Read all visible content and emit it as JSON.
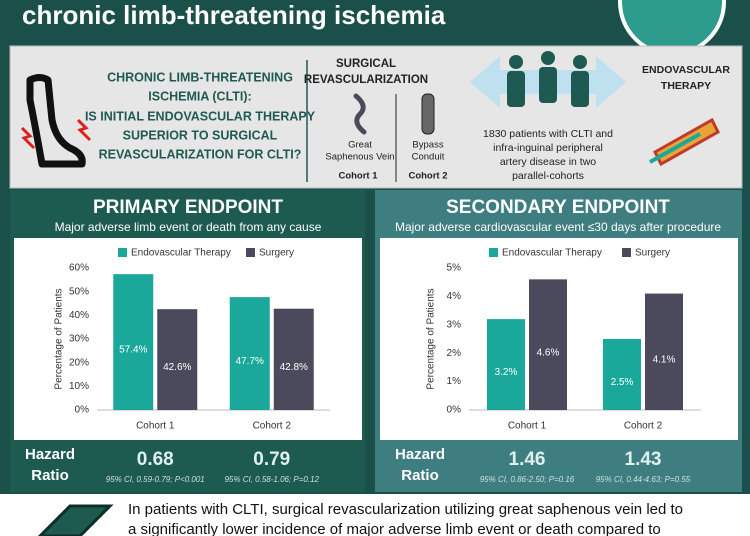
{
  "header": {
    "title": "chronic limb-threatening ischemia"
  },
  "intro": {
    "condition": [
      "CHRONIC LIMB-THREATENING",
      "ISCHEMIA (CLTI):"
    ],
    "question": [
      "IS INITIAL ENDOVASCULAR THERAPY",
      "SUPERIOR TO SURGICAL",
      "REVASCULARIZATION FOR CLTI?"
    ],
    "surgical_title": [
      "SURGICAL",
      "REVASCULARIZATION"
    ],
    "cohort_1": {
      "conduit": [
        "Great",
        "Saphenous Vein"
      ],
      "label": "Cohort 1"
    },
    "cohort_2": {
      "conduit": [
        "Bypass",
        "Conduit"
      ],
      "label": "Cohort 2"
    },
    "population": [
      "1830 patients with CLTI and",
      "infra-inguinal peripheral",
      "artery disease in two",
      "parallel-cohorts"
    ],
    "endovascular_title": [
      "ENDOVASCULAR",
      "THERAPY"
    ]
  },
  "chart_data": [
    {
      "type": "bar",
      "title": "PRIMARY ENDPOINT",
      "subtitle": "Major adverse limb event or death from any cause",
      "categories": [
        "Cohort 1",
        "Cohort 2"
      ],
      "series": [
        {
          "name": "Endovascular Therapy",
          "color": "#1aa89a",
          "values": [
            57.4,
            47.7
          ],
          "value_labels": [
            "57.4%",
            "47.7%"
          ]
        },
        {
          "name": "Surgery",
          "color": "#4b4a5c",
          "values": [
            42.6,
            42.8
          ],
          "value_labels": [
            "42.6%",
            "42.8%"
          ]
        }
      ],
      "ylabel": "Percentage of Patients",
      "ylim": [
        0,
        60
      ],
      "yticks": [
        {
          "value": 0,
          "label": "0%"
        },
        {
          "value": 10,
          "label": "10%"
        },
        {
          "value": 20,
          "label": "20%"
        },
        {
          "value": 30,
          "label": "30%"
        },
        {
          "value": 40,
          "label": "40%"
        },
        {
          "value": 50,
          "label": "50%"
        },
        {
          "value": 60,
          "label": "60%"
        }
      ],
      "grid": false,
      "hazard_ratio_label": [
        "Hazard",
        "Ratio"
      ],
      "hazard_ratios": [
        0.68,
        0.79
      ],
      "hazard_ratio_ci": [
        "95% CI, 0.59-0.79; P<0.001",
        "95% CI, 0.58-1.06; P=0.12"
      ]
    },
    {
      "type": "bar",
      "title": "SECONDARY ENDPOINT",
      "subtitle": "Major adverse cardiovascular event ≤30 days after procedure",
      "categories": [
        "Cohort 1",
        "Cohort 2"
      ],
      "series": [
        {
          "name": "Endovascular Therapy",
          "color": "#1aa89a",
          "values": [
            3.2,
            2.5
          ],
          "value_labels": [
            "3.2%",
            "2.5%"
          ]
        },
        {
          "name": "Surgery",
          "color": "#4b4a5c",
          "values": [
            4.6,
            4.1
          ],
          "value_labels": [
            "4.6%",
            "4.1%"
          ]
        }
      ],
      "ylabel": "Percentage of Patients",
      "ylim": [
        0,
        5
      ],
      "yticks": [
        {
          "value": 0,
          "label": "0%"
        },
        {
          "value": 1,
          "label": "1%"
        },
        {
          "value": 2,
          "label": "2%"
        },
        {
          "value": 3,
          "label": "3%"
        },
        {
          "value": 4,
          "label": "4%"
        },
        {
          "value": 5,
          "label": "5%"
        }
      ],
      "grid": false,
      "hazard_ratio_label": [
        "Hazard",
        "Ratio"
      ],
      "hazard_ratios": [
        1.46,
        1.43
      ],
      "hazard_ratio_ci": [
        "95% CI, 0.86-2.50; P=0.16",
        "95% CI, 0.44-4.63; P=0.55"
      ]
    }
  ],
  "conclusion": [
    "In patients with CLTI, surgical revascularization utilizing great saphenous vein led to",
    "a significantly lower incidence of major adverse limb event or death compared to"
  ]
}
